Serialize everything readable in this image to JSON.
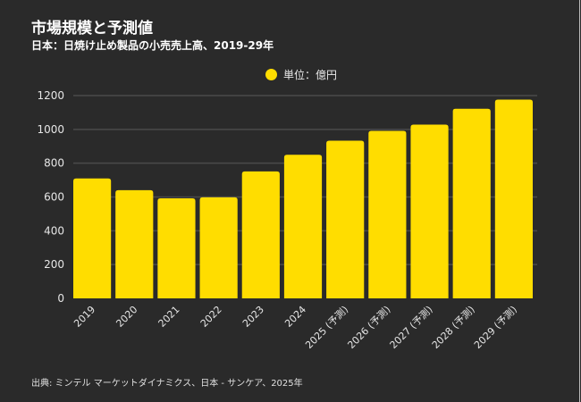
{
  "chart_data": {
    "type": "bar",
    "title": "市場規模と予測値",
    "subtitle": "日本：日焼け止め製品の小売売上高、2019-29年",
    "xlabel": "",
    "ylabel": "",
    "legend": {
      "entries": [
        "単位：億円"
      ],
      "placement": "top-center"
    },
    "categories": [
      "2019",
      "2020",
      "2021",
      "2022",
      "2023",
      "2024",
      "2025 (予測)",
      "2026 (予測)",
      "2027 (予測)",
      "2028 (予測)",
      "2029 (予測)"
    ],
    "series": [
      {
        "name": "単位：億円",
        "color": "#ffdd00",
        "values": [
          710,
          640,
          592,
          598,
          751,
          850,
          933,
          991,
          1028,
          1122,
          1176
        ]
      }
    ],
    "ylim": [
      0,
      1200
    ],
    "yticks": [
      "0",
      "200",
      "400",
      "600",
      "800",
      "1000",
      "1200"
    ],
    "ytick_values": [
      0,
      200,
      400,
      600,
      800,
      1000,
      1200
    ],
    "grid": true,
    "source": "出典: ミンテル マーケットダイナミクス、日本 - サンケア、2025年"
  },
  "colors": {
    "background": "#2a2a2a",
    "bar": "#ffdd00",
    "grid": "#4a4a4a",
    "text": "#ffffff"
  }
}
